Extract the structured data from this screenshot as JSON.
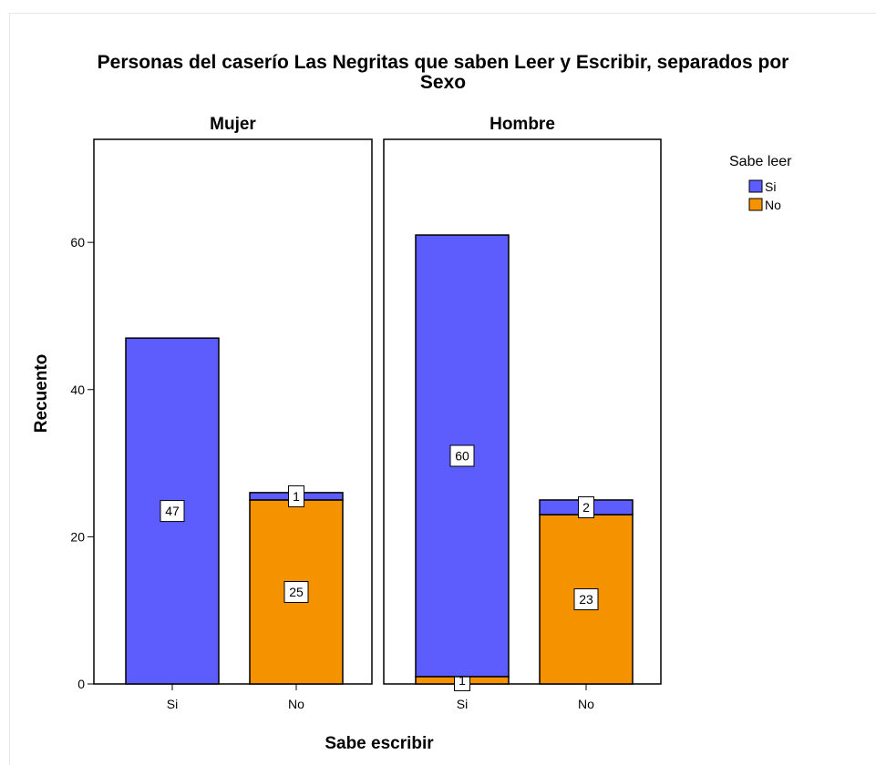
{
  "chart_data": {
    "type": "bar",
    "stacked": true,
    "title": "Personas del caserío Las Negritas que saben Leer y Escribir, separados por Sexo",
    "xlabel": "Sabe escribir",
    "ylabel": "Recuento",
    "ylim": [
      0,
      74
    ],
    "yticks": [
      0,
      20,
      40,
      60
    ],
    "categories": [
      "Si",
      "No"
    ],
    "legend": {
      "title": "Sabe leer",
      "position": "right"
    },
    "colors": {
      "Si": "#5d5dfd",
      "No": "#f59200"
    },
    "series_names": [
      "Si",
      "No"
    ],
    "panels": [
      {
        "name": "Mujer",
        "bars": [
          {
            "category": "Si",
            "segments": {
              "No": 0,
              "Si": 47
            }
          },
          {
            "category": "No",
            "segments": {
              "No": 25,
              "Si": 1
            }
          }
        ]
      },
      {
        "name": "Hombre",
        "bars": [
          {
            "category": "Si",
            "segments": {
              "No": 1,
              "Si": 60
            }
          },
          {
            "category": "No",
            "segments": {
              "No": 23,
              "Si": 2
            }
          }
        ]
      }
    ]
  }
}
